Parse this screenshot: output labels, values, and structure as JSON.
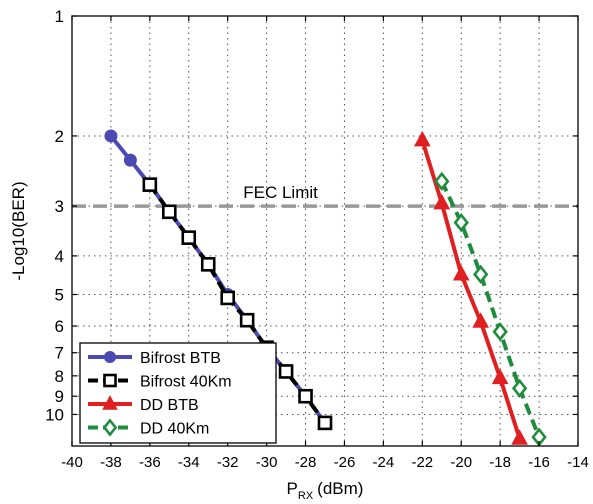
{
  "chart_data": {
    "type": "line",
    "title": "",
    "xlabel_main": "P",
    "xlabel_sub": "RX",
    "xlabel_unit": "(dBm)",
    "ylabel": "-Log10(BER)",
    "xlim": [
      -40,
      -14
    ],
    "ylim": [
      1,
      12
    ],
    "y_scale": "log",
    "x_ticks": [
      -40,
      -38,
      -36,
      -34,
      -32,
      -30,
      -28,
      -26,
      -24,
      -22,
      -20,
      -18,
      -16,
      -14
    ],
    "x_tick_labels": [
      "-40",
      "-38",
      "-36",
      "-34",
      "-32",
      "-30",
      "-28",
      "-26",
      "-24",
      "-22",
      "-20",
      "-18",
      "-16",
      "-14"
    ],
    "y_ticks": [
      1,
      2,
      3,
      4,
      5,
      6,
      7,
      8,
      9,
      10
    ],
    "y_tick_labels": [
      "1",
      "2",
      "3",
      "4",
      "5",
      "6",
      "7",
      "8",
      "9",
      "10"
    ],
    "grid": true,
    "legend_position": "bottom-left",
    "fec_limit": {
      "label": "FEC Limit",
      "y": 3,
      "color": "#999999"
    },
    "series": [
      {
        "name": "Bifrost BTB",
        "color": "#4a4ab2",
        "marker": "circle",
        "dash": "solid",
        "x": [
          -38,
          -37,
          -36,
          -35,
          -34,
          -33,
          -32,
          -31,
          -30,
          -29,
          -28,
          -27
        ],
        "y": [
          2.0,
          2.3,
          2.65,
          3.1,
          3.6,
          4.2,
          5.0,
          5.8,
          6.8,
          7.8,
          9.0,
          10.5
        ]
      },
      {
        "name": "Bifrost 40Km",
        "color": "#000000",
        "marker": "square",
        "dash": "dashed",
        "x": [
          -36,
          -35,
          -34,
          -33,
          -32,
          -31,
          -30,
          -29,
          -28,
          -27
        ],
        "y": [
          2.65,
          3.1,
          3.6,
          4.2,
          5.1,
          5.8,
          6.8,
          7.8,
          9.0,
          10.5
        ]
      },
      {
        "name": "DD BTB",
        "color": "#e02020",
        "marker": "triangle",
        "dash": "solid",
        "x": [
          -22,
          -21,
          -20,
          -19,
          -18,
          -17
        ],
        "y": [
          2.05,
          2.95,
          4.45,
          5.85,
          8.1,
          11.5
        ]
      },
      {
        "name": "DD 40Km",
        "color": "#1e8c3c",
        "marker": "diamond",
        "dash": "dashed",
        "x": [
          -21,
          -20,
          -19,
          -18,
          -17,
          -16
        ],
        "y": [
          2.6,
          3.3,
          4.45,
          6.2,
          8.6,
          11.4
        ]
      }
    ]
  }
}
